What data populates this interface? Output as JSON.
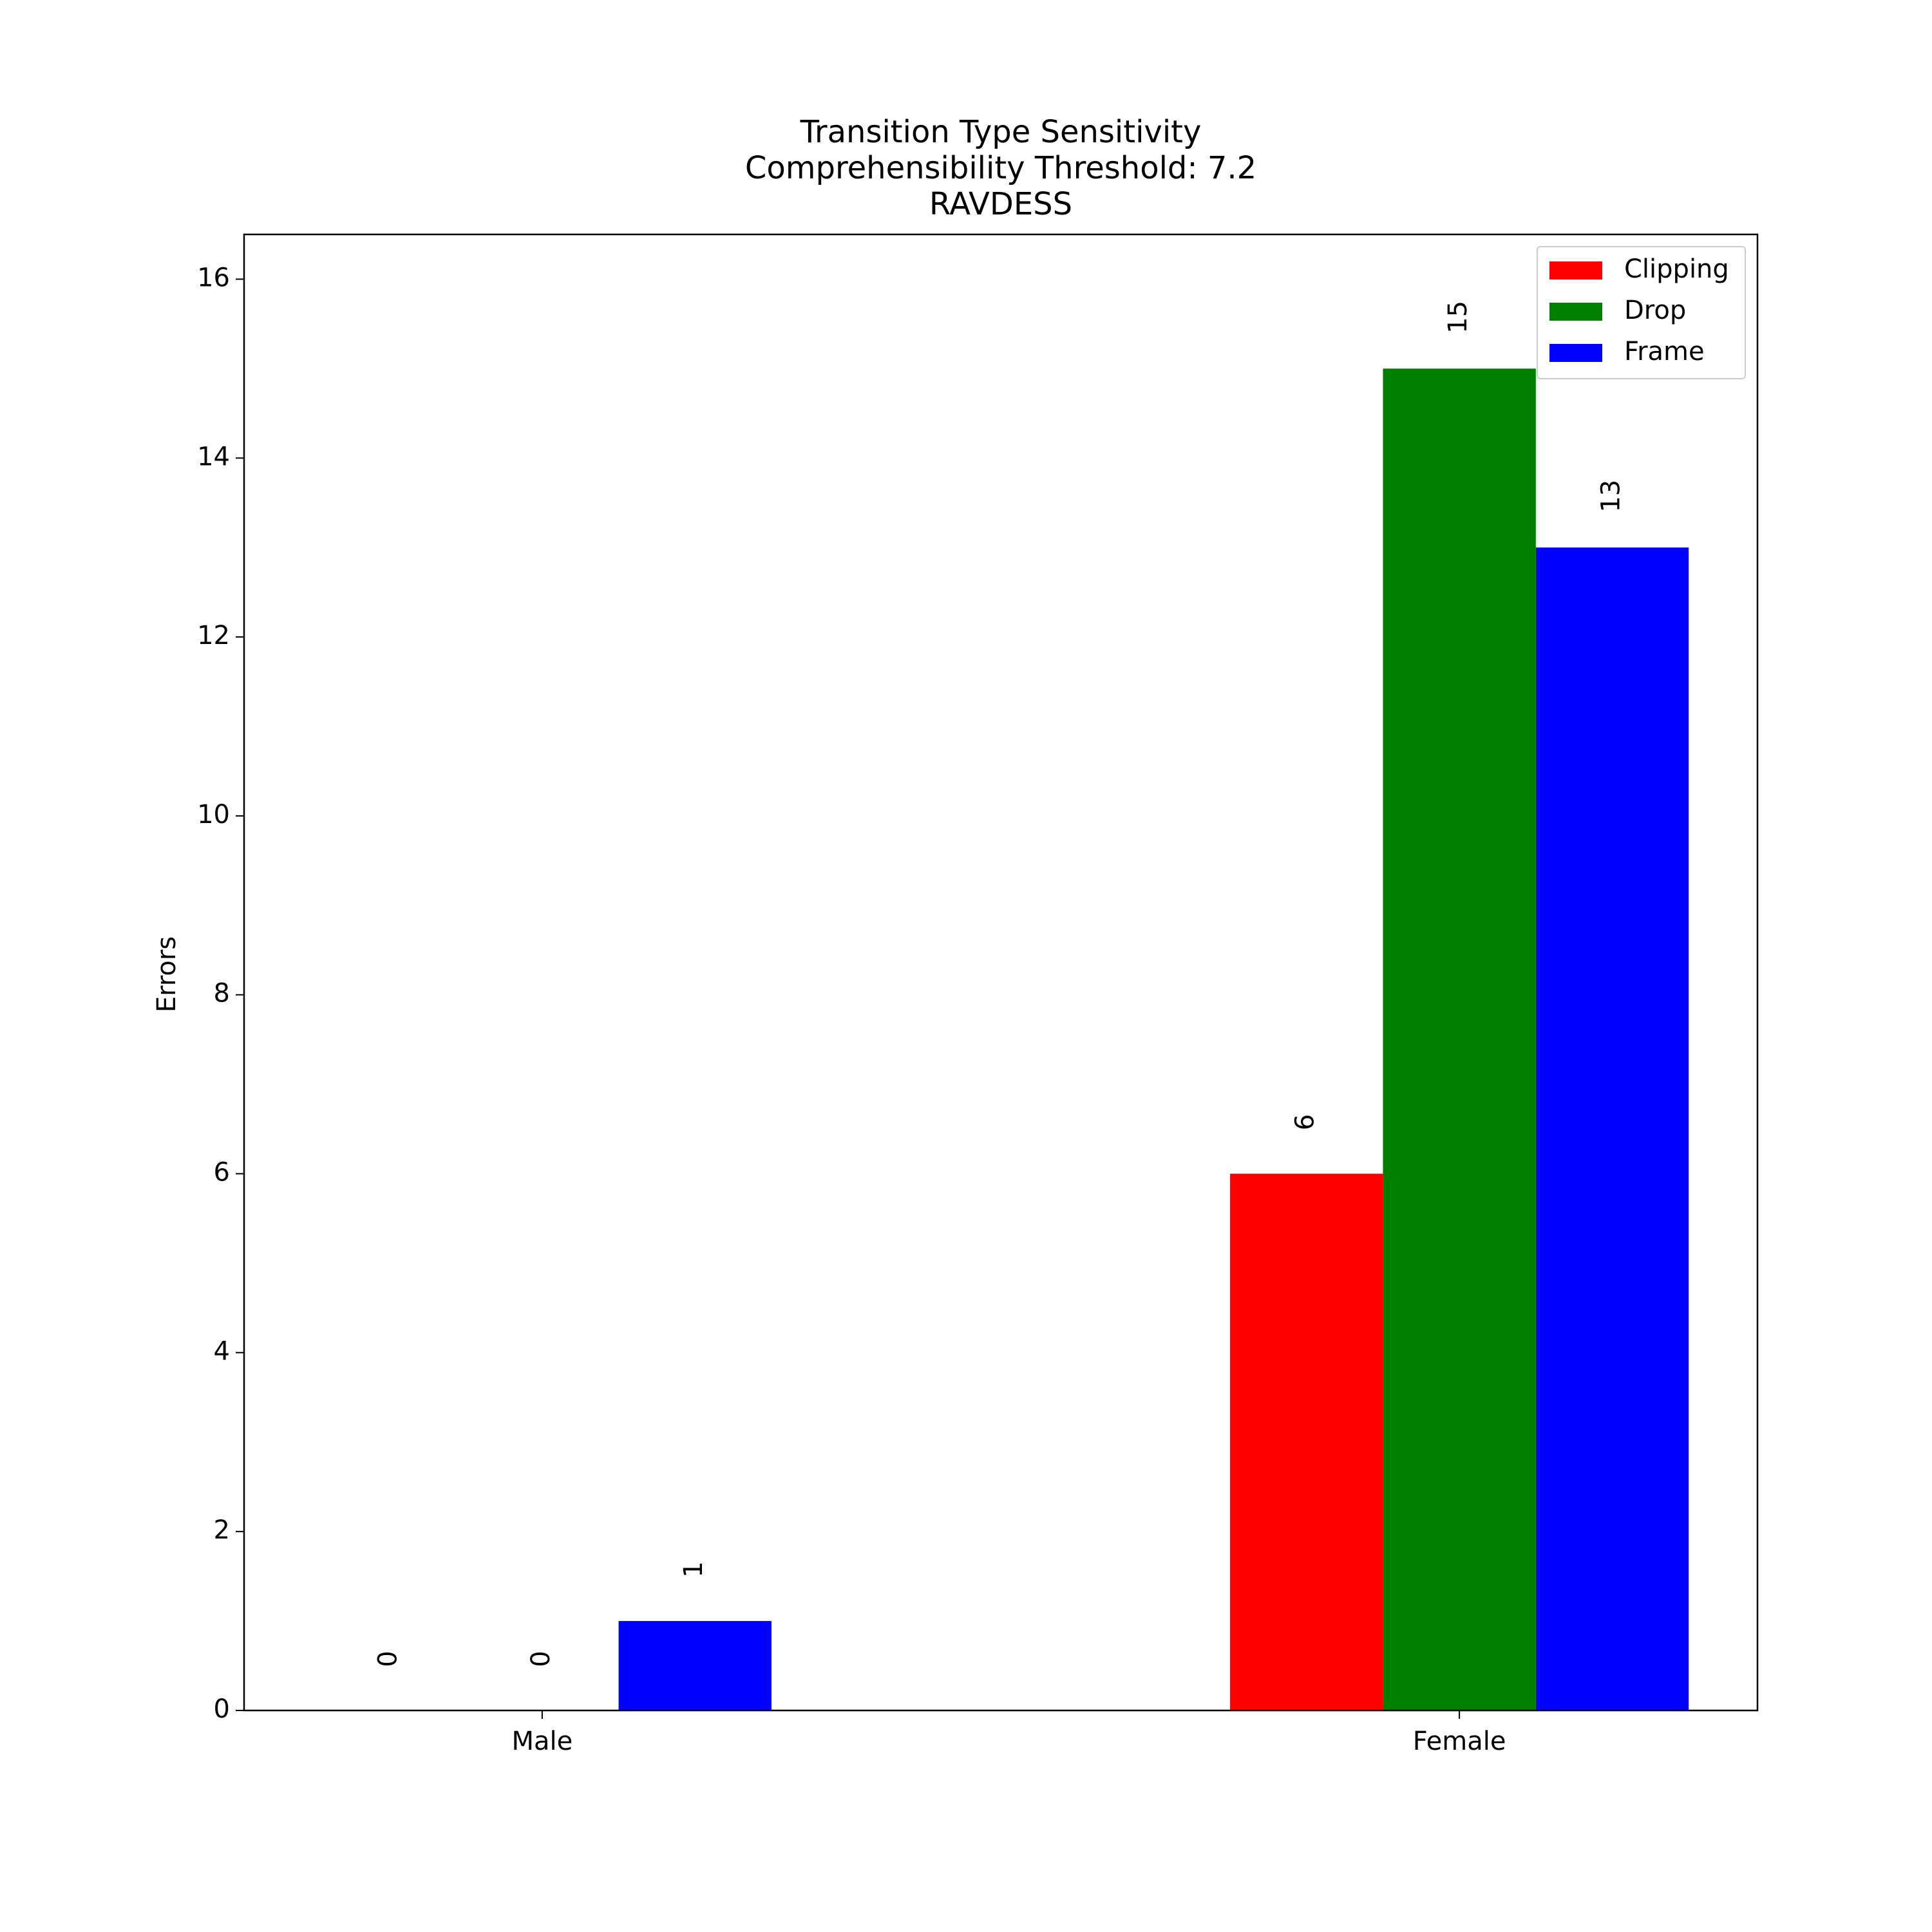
{
  "chart_data": {
    "type": "bar",
    "title": [
      "Transition Type Sensitivity",
      "Comprehensibility Threshold: 7.2",
      "RAVDESS"
    ],
    "ylabel": "Errors",
    "categories": [
      "Male",
      "Female"
    ],
    "series": [
      {
        "name": "Clipping",
        "color": "#ff0000",
        "values": [
          0,
          6
        ]
      },
      {
        "name": "Drop",
        "color": "#008000",
        "values": [
          0,
          15
        ]
      },
      {
        "name": "Frame",
        "color": "#0000ff",
        "values": [
          1,
          13
        ]
      }
    ],
    "ylim": [
      0,
      16.5
    ],
    "yticks": [
      0,
      2,
      4,
      6,
      8,
      10,
      12,
      14,
      16
    ],
    "legend": "upper right"
  }
}
